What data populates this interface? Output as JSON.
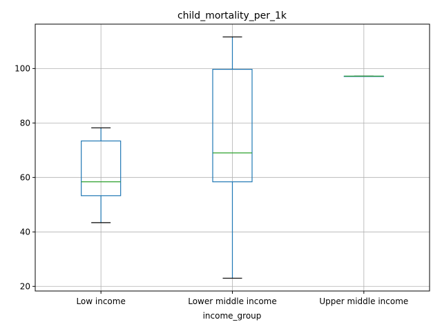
{
  "chart_data": {
    "type": "box",
    "title": "child_mortality_per_1k",
    "xlabel": "income_group",
    "ylabel": "",
    "ylim": [
      18.3,
      116.3
    ],
    "yticks": [
      20,
      40,
      60,
      80,
      100
    ],
    "grid": true,
    "categories": [
      "Low income",
      "Lower middle income",
      "Upper middle income"
    ],
    "boxes": [
      {
        "category": "Low income",
        "whisker_low": 43.4,
        "q1": 53.3,
        "median": 58.4,
        "q3": 73.4,
        "whisker_high": 78.2
      },
      {
        "category": "Lower middle income",
        "whisker_low": 23.0,
        "q1": 58.4,
        "median": 69.0,
        "q3": 99.7,
        "whisker_high": 111.6
      },
      {
        "category": "Upper middle income",
        "whisker_low": 97.2,
        "q1": 97.2,
        "median": 97.2,
        "q3": 97.2,
        "whisker_high": 97.2
      }
    ],
    "colors": {
      "box": "#1f77b4",
      "median": "#2ca02c",
      "whisker_cap": "#000000",
      "grid": "#b0b0b0"
    }
  }
}
